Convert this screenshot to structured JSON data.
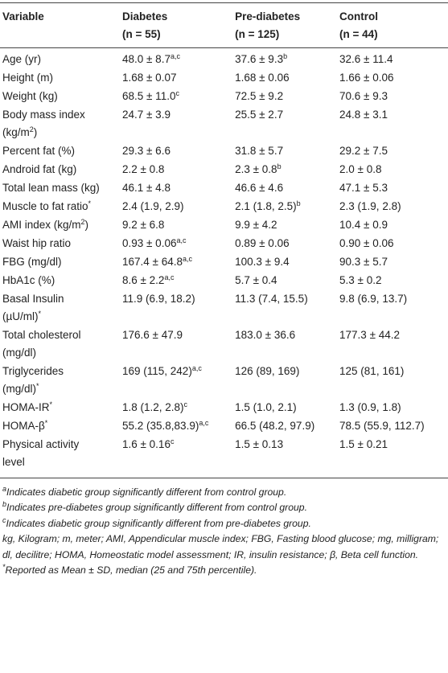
{
  "table": {
    "header": [
      {
        "title": "Variable"
      },
      {
        "title": "Diabetes",
        "n": "(n = 55)"
      },
      {
        "title": "Pre-diabetes",
        "n": "(n = 125)"
      },
      {
        "title": "Control",
        "n": "(n = 44)"
      }
    ],
    "rows": [
      [
        [
          "Age (yr)"
        ],
        [
          "48.0 ± 8.7",
          {
            "sup": "a,c"
          }
        ],
        [
          "37.6 ± 9.3",
          {
            "sup": "b"
          }
        ],
        [
          "32.6 ± 11.4"
        ]
      ],
      [
        [
          "Height (m)"
        ],
        [
          "1.68 ± 0.07"
        ],
        [
          "1.68 ± 0.06"
        ],
        [
          "1.66 ± 0.06"
        ]
      ],
      [
        [
          "Weight (kg)"
        ],
        [
          "68.5 ± 11.0",
          {
            "sup": "c"
          }
        ],
        [
          "72.5 ± 9.2"
        ],
        [
          "70.6 ± 9.3"
        ]
      ],
      [
        [
          "Body mass index (kg/m",
          {
            "sup": "2"
          },
          ")"
        ],
        [
          "24.7 ± 3.9"
        ],
        [
          "25.5 ± 2.7"
        ],
        [
          "24.8 ± 3.1"
        ]
      ],
      [
        [
          "Percent fat (%)"
        ],
        [
          "29.3 ± 6.6"
        ],
        [
          "31.8 ± 5.7"
        ],
        [
          "29.2 ± 7.5"
        ]
      ],
      [
        [
          "Android fat (kg)"
        ],
        [
          "2.2 ± 0.8"
        ],
        [
          "2.3 ± 0.8",
          {
            "sup": "b"
          }
        ],
        [
          "2.0 ± 0.8"
        ]
      ],
      [
        [
          "Total lean mass (kg)"
        ],
        [
          "46.1 ± 4.8"
        ],
        [
          "46.6 ± 4.6"
        ],
        [
          "47.1 ± 5.3"
        ]
      ],
      [
        [
          "Muscle to fat ratio",
          {
            "sup": "*"
          }
        ],
        [
          "2.4 (1.9, 2.9)"
        ],
        [
          "2.1 (1.8, 2.5)",
          {
            "sup": "b"
          }
        ],
        [
          "2.3 (1.9, 2.8)"
        ]
      ],
      [
        [
          "AMI index (kg/m",
          {
            "sup": "2"
          },
          ")"
        ],
        [
          "9.2 ± 6.8"
        ],
        [
          "9.9 ± 4.2"
        ],
        [
          "10.4 ± 0.9"
        ]
      ],
      [
        [
          "Waist hip ratio"
        ],
        [
          "0.93 ± 0.06",
          {
            "sup": "a,c"
          }
        ],
        [
          "0.89 ± 0.06"
        ],
        [
          "0.90 ± 0.06"
        ]
      ],
      [
        [
          "FBG (mg/dl)"
        ],
        [
          "167.4 ± 64.8",
          {
            "sup": "a,c"
          }
        ],
        [
          "100.3 ± 9.4"
        ],
        [
          "90.3 ± 5.7"
        ]
      ],
      [
        [
          "HbA1c (%)"
        ],
        [
          "8.6 ± 2.2",
          {
            "sup": "a,c"
          }
        ],
        [
          "5.7 ± 0.4"
        ],
        [
          "5.3 ± 0.2"
        ]
      ],
      [
        [
          "Basal Insulin (µU/ml)",
          {
            "sup": "*"
          }
        ],
        [
          "11.9 (6.9, 18.2)"
        ],
        [
          "11.3 (7.4, 15.5)"
        ],
        [
          "9.8 (6.9, 13.7)"
        ]
      ],
      [
        [
          "Total cholesterol (mg/dl)"
        ],
        [
          "176.6 ± 47.9"
        ],
        [
          "183.0 ± 36.6"
        ],
        [
          "177.3 ± 44.2"
        ]
      ],
      [
        [
          "Triglycerides (mg/dl)",
          {
            "sup": "*"
          }
        ],
        [
          "169 (115, 242)",
          {
            "sup": "a,c"
          }
        ],
        [
          "126 (89, 169)"
        ],
        [
          "125 (81, 161)"
        ]
      ],
      [
        [
          "HOMA-IR",
          {
            "sup": "*"
          }
        ],
        [
          "1.8 (1.2, 2.8)",
          {
            "sup": "c"
          }
        ],
        [
          "1.5 (1.0, 2.1)"
        ],
        [
          "1.3 (0.9, 1.8)"
        ]
      ],
      [
        [
          "HOMA-β",
          {
            "sup": "*"
          }
        ],
        [
          "55.2 (35.8,83.9)",
          {
            "sup": "a,c"
          }
        ],
        [
          "66.5 (48.2, 97.9)"
        ],
        [
          "78.5 (55.9, 112.7)"
        ]
      ],
      [
        [
          "Physical activity level"
        ],
        [
          "1.6 ± 0.16",
          {
            "sup": "c"
          }
        ],
        [
          "1.5 ± 0.13"
        ],
        [
          "1.5 ± 0.21"
        ]
      ]
    ]
  },
  "footnotes": [
    {
      "mark": "a",
      "text": "Indicates diabetic group significantly different from control group."
    },
    {
      "mark": "b",
      "text": "Indicates pre-diabetes group significantly different from control group."
    },
    {
      "mark": "c",
      "text": "Indicates diabetic group significantly different from pre-diabetes group."
    },
    {
      "text": "kg, Kilogram; m, meter; AMI, Appendicular muscle index; FBG, Fasting blood glucose; mg, milligram; dl, decilitre; HOMA, Homeostatic model assessment; IR, insulin resistance; β, Beta cell function."
    },
    {
      "mark": "*",
      "text": "Reported as Mean ± SD, median (25 and 75th percentile)."
    }
  ]
}
